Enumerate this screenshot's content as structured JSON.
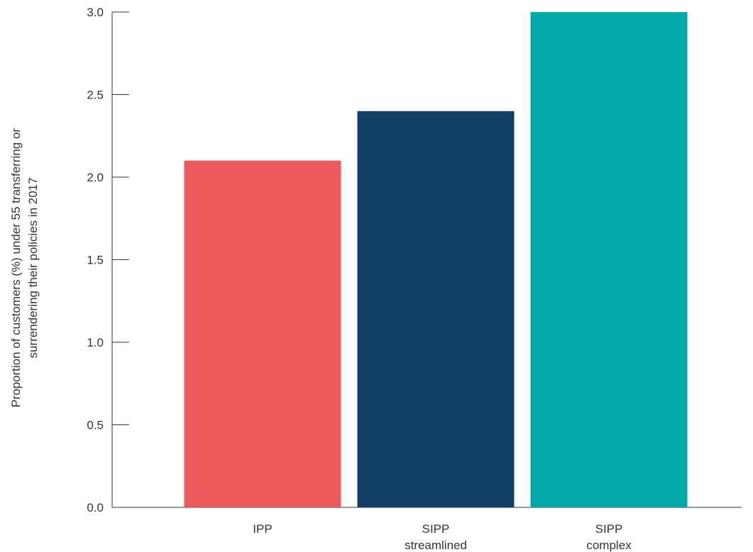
{
  "chart_data": {
    "type": "bar",
    "categories": [
      [
        "IPP"
      ],
      [
        "SIPP",
        "streamlined"
      ],
      [
        "SIPP",
        "complex"
      ]
    ],
    "values": [
      2.1,
      2.4,
      3.0
    ],
    "colors": [
      "#ec5a5e",
      "#123d64",
      "#00a8a8"
    ],
    "ylabel": [
      "Proportion of customers (%) under 55 transferring or",
      "surrendering their policies in 2017"
    ],
    "ylim": [
      0,
      3.0
    ],
    "yticks": [
      "0.0",
      "0.5",
      "1.0",
      "1.5",
      "2.0",
      "2.5",
      "3.0"
    ],
    "grid": false
  }
}
